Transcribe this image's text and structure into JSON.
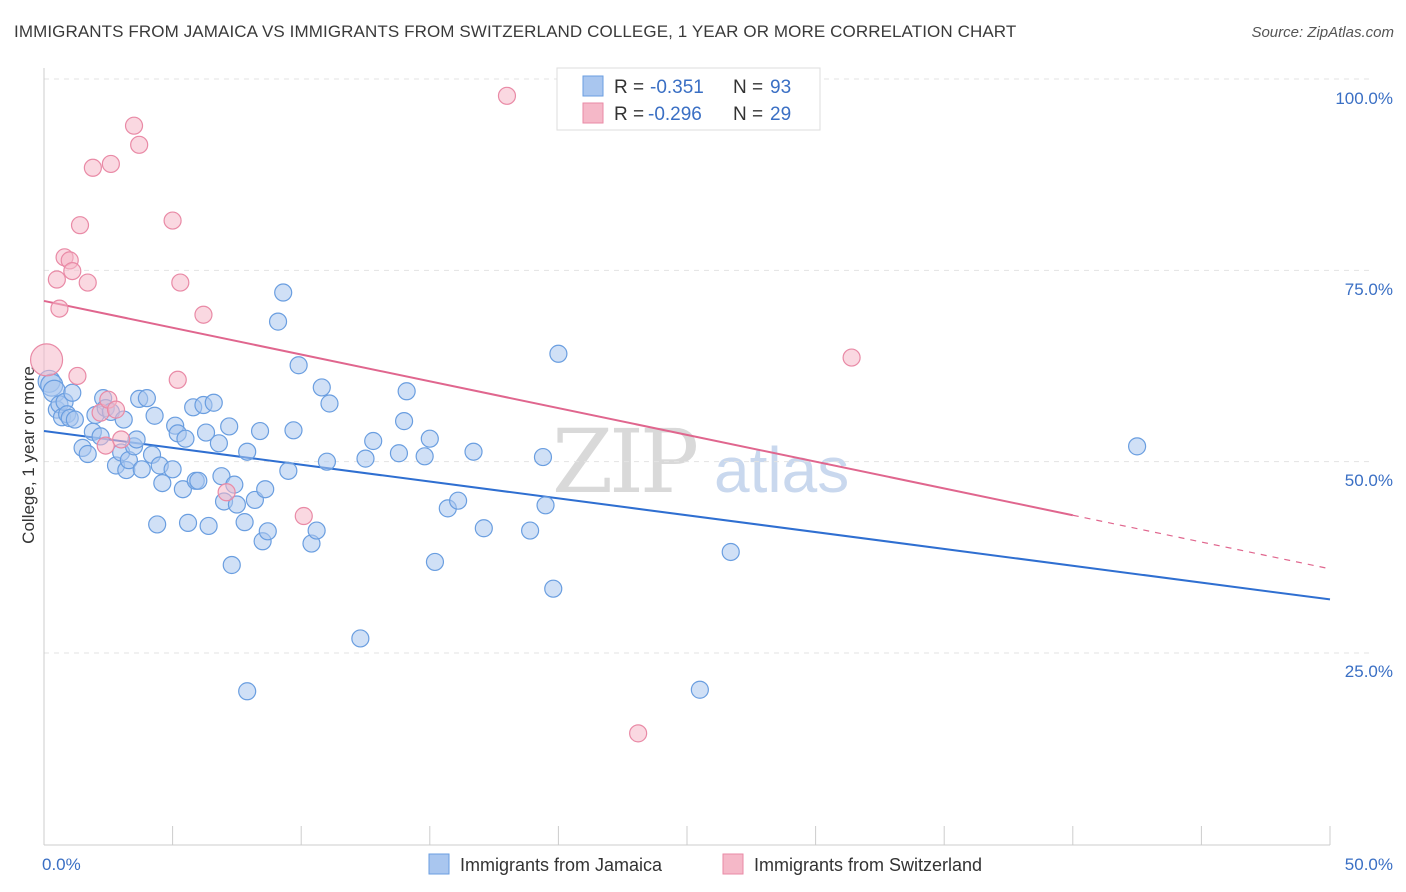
{
  "title": "IMMIGRANTS FROM JAMAICA VS IMMIGRANTS FROM SWITZERLAND COLLEGE, 1 YEAR OR MORE CORRELATION CHART",
  "source": "Source: ZipAtlas.com",
  "watermark": {
    "part1": "ZIP",
    "part2": "atlas"
  },
  "legend": {
    "rows": [
      {
        "r_label": "R =",
        "r_value": "-0.351",
        "n_label": "N =",
        "n_value": "93",
        "color": "#a9c6ef"
      },
      {
        "r_label": "R =",
        "r_value": "-0.296",
        "n_label": "N =",
        "n_value": "29",
        "color": "#f5b8c8"
      }
    ]
  },
  "bottom_legend": [
    {
      "label": "Immigrants from Jamaica",
      "color": "#a9c6ef"
    },
    {
      "label": "Immigrants from Switzerland",
      "color": "#f5b8c8"
    }
  ],
  "chart_data": {
    "type": "scatter",
    "title": "IMMIGRANTS FROM JAMAICA VS IMMIGRANTS FROM SWITZERLAND COLLEGE, 1 YEAR OR MORE CORRELATION CHART",
    "xlabel": "",
    "ylabel": "College, 1 year or more",
    "xlim": [
      0,
      50
    ],
    "ylim": [
      0,
      105
    ],
    "x_tick_labels": [
      "0.0%",
      "50.0%"
    ],
    "y_tick_labels": [
      "100.0%",
      "75.0%",
      "50.0%",
      "25.0%"
    ],
    "y_ticks": [
      100,
      75,
      50,
      25
    ],
    "grid": true,
    "legend_position": "top-center",
    "series": [
      {
        "name": "Immigrants from Jamaica",
        "color": "#6a9ee0",
        "fill": "#a9c6ef",
        "points": [
          [
            0.2,
            60.5
          ],
          [
            0.3,
            60.0
          ],
          [
            0.4,
            59.2
          ],
          [
            0.5,
            56.8
          ],
          [
            0.6,
            57.5
          ],
          [
            0.7,
            55.8
          ],
          [
            0.8,
            57.8
          ],
          [
            0.9,
            56.2
          ],
          [
            1.0,
            55.7
          ],
          [
            1.1,
            59.0
          ],
          [
            1.2,
            55.5
          ],
          [
            1.5,
            51.8
          ],
          [
            1.7,
            51.0
          ],
          [
            1.9,
            53.9
          ],
          [
            2.0,
            56.1
          ],
          [
            2.2,
            53.3
          ],
          [
            2.3,
            58.3
          ],
          [
            2.4,
            57.0
          ],
          [
            2.6,
            56.5
          ],
          [
            2.8,
            49.5
          ],
          [
            3.0,
            51.2
          ],
          [
            3.1,
            55.5
          ],
          [
            3.2,
            48.9
          ],
          [
            3.3,
            50.2
          ],
          [
            3.5,
            52.0
          ],
          [
            3.6,
            52.9
          ],
          [
            3.7,
            58.2
          ],
          [
            3.8,
            49.0
          ],
          [
            4.0,
            58.3
          ],
          [
            4.2,
            50.9
          ],
          [
            4.3,
            56.0
          ],
          [
            4.4,
            41.8
          ],
          [
            4.5,
            49.5
          ],
          [
            4.6,
            47.2
          ],
          [
            5.0,
            49.0
          ],
          [
            5.1,
            54.7
          ],
          [
            5.2,
            53.7
          ],
          [
            5.4,
            46.4
          ],
          [
            5.5,
            53.0
          ],
          [
            5.6,
            42.0
          ],
          [
            5.8,
            57.1
          ],
          [
            5.9,
            47.5
          ],
          [
            6.0,
            47.5
          ],
          [
            6.2,
            57.4
          ],
          [
            6.3,
            53.8
          ],
          [
            6.4,
            41.6
          ],
          [
            6.6,
            57.7
          ],
          [
            6.8,
            52.4
          ],
          [
            6.9,
            48.1
          ],
          [
            7.0,
            44.8
          ],
          [
            7.2,
            54.6
          ],
          [
            7.3,
            36.5
          ],
          [
            7.4,
            47.0
          ],
          [
            7.5,
            44.4
          ],
          [
            7.8,
            42.1
          ],
          [
            7.9,
            51.3
          ],
          [
            7.9,
            20.0
          ],
          [
            8.2,
            45.0
          ],
          [
            8.4,
            54.0
          ],
          [
            8.5,
            39.6
          ],
          [
            8.6,
            46.4
          ],
          [
            8.7,
            40.9
          ],
          [
            9.1,
            68.3
          ],
          [
            9.3,
            72.1
          ],
          [
            9.5,
            48.8
          ],
          [
            9.7,
            54.1
          ],
          [
            9.9,
            62.6
          ],
          [
            10.4,
            39.3
          ],
          [
            10.6,
            41.0
          ],
          [
            10.8,
            59.7
          ],
          [
            11.0,
            50.0
          ],
          [
            11.1,
            57.6
          ],
          [
            12.3,
            26.9
          ],
          [
            12.5,
            50.4
          ],
          [
            12.8,
            52.7
          ],
          [
            13.8,
            51.1
          ],
          [
            14.0,
            55.3
          ],
          [
            14.1,
            59.2
          ],
          [
            14.8,
            50.7
          ],
          [
            15.0,
            53.0
          ],
          [
            15.2,
            36.9
          ],
          [
            15.7,
            43.9
          ],
          [
            16.1,
            44.9
          ],
          [
            16.7,
            51.3
          ],
          [
            17.1,
            41.3
          ],
          [
            18.9,
            41.0
          ],
          [
            19.4,
            50.6
          ],
          [
            19.5,
            44.3
          ],
          [
            19.8,
            33.4
          ],
          [
            20.0,
            64.1
          ],
          [
            25.5,
            20.2
          ],
          [
            26.7,
            38.2
          ],
          [
            42.5,
            52.0
          ]
        ],
        "trend": {
          "x0": 0,
          "y0": 54.0,
          "x1": 50,
          "y1": 32.0
        }
      },
      {
        "name": "Immigrants from Switzerland",
        "color": "#e98aa6",
        "fill": "#f5b8c8",
        "points": [
          [
            0.1,
            63.3
          ],
          [
            0.5,
            73.8
          ],
          [
            0.6,
            70.0
          ],
          [
            0.8,
            76.7
          ],
          [
            1.0,
            76.3
          ],
          [
            1.1,
            74.9
          ],
          [
            1.3,
            61.2
          ],
          [
            1.4,
            80.9
          ],
          [
            1.7,
            73.4
          ],
          [
            1.9,
            88.4
          ],
          [
            2.2,
            56.4
          ],
          [
            2.4,
            52.1
          ],
          [
            2.5,
            58.1
          ],
          [
            2.6,
            88.9
          ],
          [
            2.8,
            56.8
          ],
          [
            3.0,
            52.9
          ],
          [
            3.5,
            93.9
          ],
          [
            3.7,
            91.4
          ],
          [
            5.0,
            81.5
          ],
          [
            5.2,
            60.7
          ],
          [
            5.3,
            73.4
          ],
          [
            6.2,
            69.2
          ],
          [
            7.1,
            46.0
          ],
          [
            10.1,
            42.9
          ],
          [
            18.0,
            97.8
          ],
          [
            23.1,
            14.5
          ],
          [
            31.4,
            63.6
          ]
        ],
        "trend": {
          "x0": 0,
          "y0": 71.0,
          "x1": 40,
          "y1": 43.0
        },
        "trend_dashed": {
          "x0": 40,
          "y0": 43.0,
          "x1": 50,
          "y1": 36.0
        }
      }
    ]
  }
}
